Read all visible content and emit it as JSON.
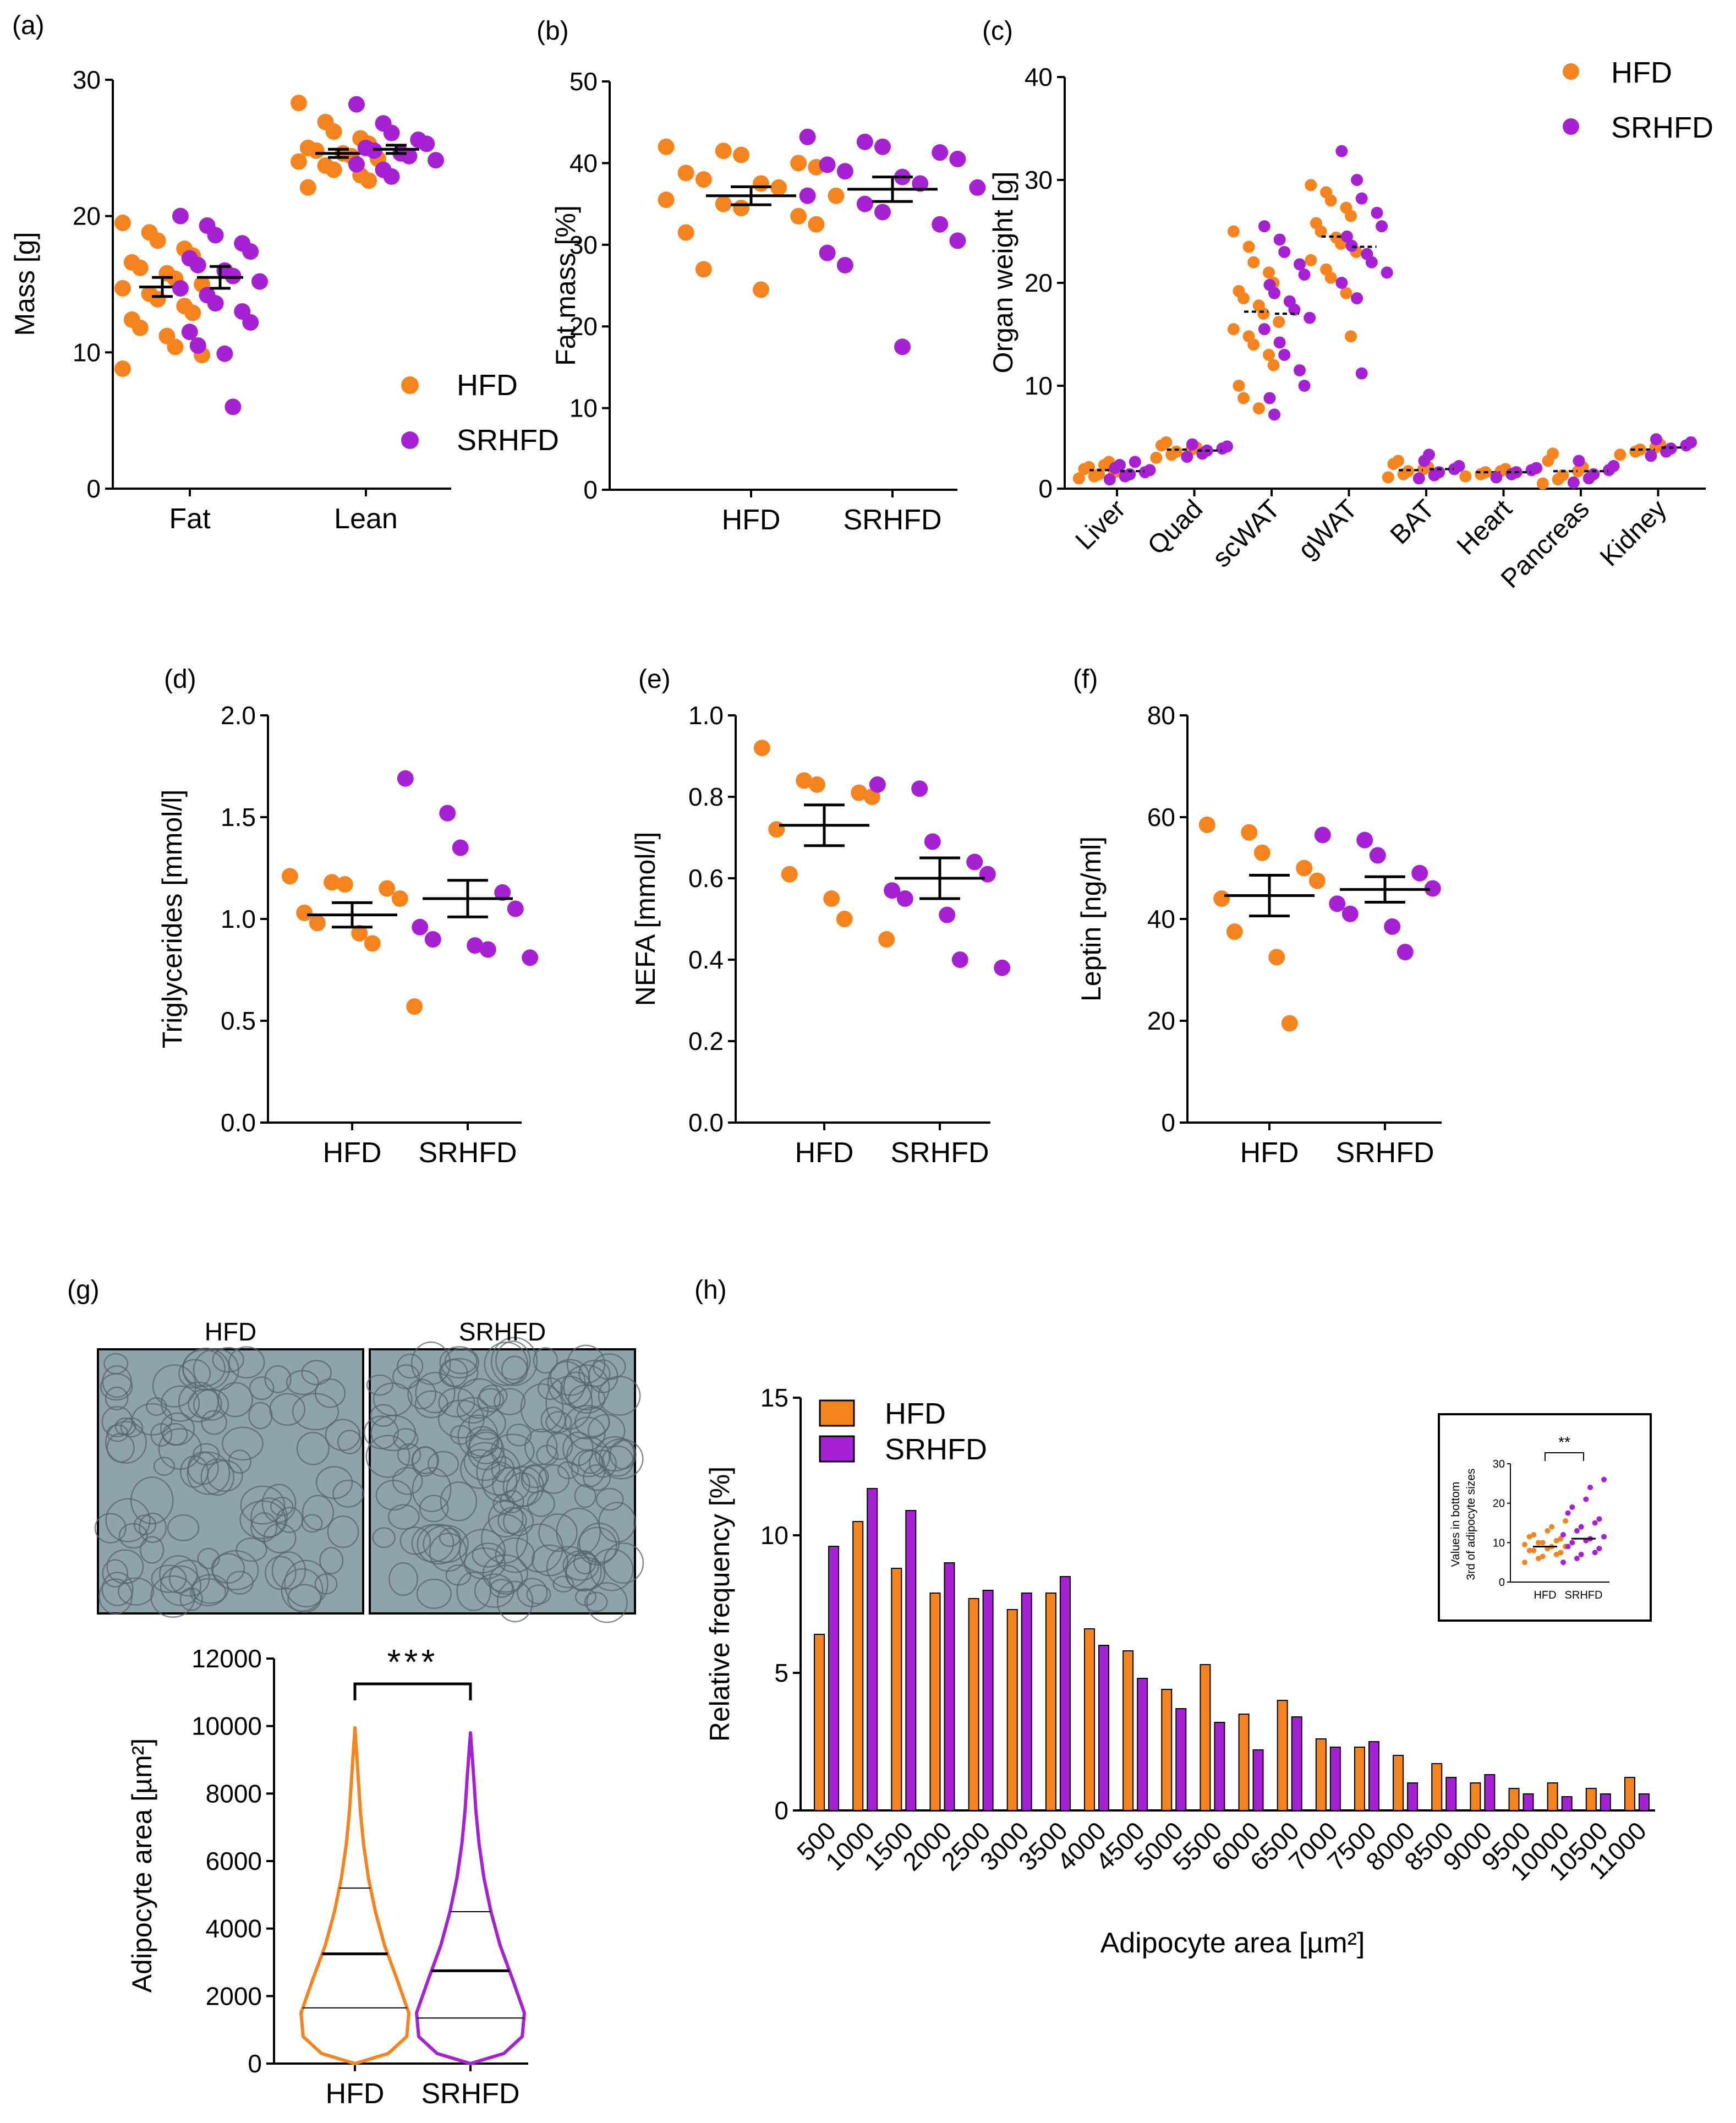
{
  "colors": {
    "hfd": "#F5841F",
    "srhfd": "#A620D4",
    "axis": "#000000"
  },
  "chart_data": [
    {
      "id": "a",
      "panel_label": "(a)",
      "type": "scatter",
      "ylabel": "Mass [g]",
      "ylim": [
        0,
        30
      ],
      "yticks": [
        "0",
        "10",
        "20",
        "30"
      ],
      "categories": [
        "Fat",
        "Lean"
      ],
      "legend": [
        "HFD",
        "SRHFD"
      ],
      "series": [
        {
          "name": "HFD",
          "groups": [
            {
              "category": "Fat",
              "mean": 14.8,
              "sem": 0.7,
              "points": [
                19.5,
                18.8,
                18.2,
                17.6,
                17.1,
                16.6,
                16.2,
                15.8,
                15.4,
                15.0,
                14.7,
                14.3,
                13.9,
                13.4,
                12.9,
                12.4,
                11.8,
                11.2,
                10.4,
                9.8,
                8.8
              ]
            },
            {
              "category": "Lean",
              "mean": 24.6,
              "sem": 0.3,
              "points": [
                28.3,
                26.9,
                26.2,
                25.7,
                25.3,
                25.0,
                24.8,
                24.6,
                24.4,
                24.2,
                24.0,
                23.7,
                23.4,
                23.0,
                22.6,
                22.1
              ]
            }
          ]
        },
        {
          "name": "SRHFD",
          "groups": [
            {
              "category": "Fat",
              "mean": 15.5,
              "sem": 0.8,
              "points": [
                20.0,
                19.3,
                18.6,
                18.0,
                17.4,
                16.9,
                16.4,
                16.0,
                15.6,
                15.2,
                14.7,
                14.2,
                13.6,
                13.0,
                12.2,
                11.5,
                10.5,
                9.9,
                6.0
              ]
            },
            {
              "category": "Lean",
              "mean": 24.9,
              "sem": 0.3,
              "points": [
                28.2,
                26.8,
                26.1,
                25.6,
                25.3,
                25.0,
                24.8,
                24.6,
                24.4,
                24.1,
                23.8,
                23.4,
                22.9
              ]
            }
          ]
        }
      ]
    },
    {
      "id": "b",
      "panel_label": "(b)",
      "type": "scatter",
      "ylabel": "Fat mass [%]",
      "ylim": [
        0,
        50
      ],
      "yticks": [
        "0",
        "10",
        "20",
        "30",
        "40",
        "50"
      ],
      "categories": [
        "HFD",
        "SRHFD"
      ],
      "series": [
        {
          "name": "HFD",
          "groups": [
            {
              "category": "HFD",
              "mean": 36.0,
              "sem": 1.1,
              "points": [
                42.0,
                41.5,
                41.0,
                40.0,
                39.5,
                38.8,
                38.0,
                37.5,
                37.0,
                36.0,
                35.5,
                35.0,
                34.5,
                33.5,
                32.5,
                31.5,
                27.0,
                24.5
              ]
            }
          ]
        },
        {
          "name": "SRHFD",
          "groups": [
            {
              "category": "SRHFD",
              "mean": 36.8,
              "sem": 1.5,
              "points": [
                43.2,
                42.6,
                42.0,
                41.3,
                40.5,
                39.8,
                39.0,
                38.3,
                37.5,
                37.0,
                36.0,
                35.0,
                34.0,
                32.5,
                30.5,
                29.0,
                27.5,
                17.5
              ]
            }
          ]
        }
      ]
    },
    {
      "id": "c",
      "panel_label": "(c)",
      "type": "scatter",
      "ylabel": "Organ weight [g]",
      "ylim": [
        0,
        40
      ],
      "yticks": [
        "0",
        "10",
        "20",
        "30",
        "40"
      ],
      "categories": [
        "Liver",
        "Quad",
        "scWAT",
        "gWAT",
        "BAT",
        "Heart",
        "Pancreas",
        "Kidney"
      ],
      "legend": [
        "HFD",
        "SRHFD"
      ],
      "series": [
        {
          "name": "HFD",
          "groups": [
            {
              "category": "Liver",
              "mean": 1.8,
              "points": [
                1.0,
                1.2,
                1.4,
                1.6,
                1.7,
                1.9,
                2.1,
                2.3,
                2.6
              ]
            },
            {
              "category": "Quad",
              "mean": 3.8,
              "points": [
                3.0,
                3.3,
                3.6,
                3.8,
                4.0,
                4.2,
                4.5
              ]
            },
            {
              "category": "scWAT",
              "mean": 17.2,
              "points": [
                25.0,
                23.5,
                22.0,
                21.0,
                20.0,
                19.2,
                18.5,
                17.8,
                17.0,
                16.2,
                15.5,
                14.8,
                14.0,
                13.0,
                12.0,
                10.0,
                8.8,
                7.8
              ]
            },
            {
              "category": "gWAT",
              "mean": 24.5,
              "points": [
                29.5,
                28.8,
                28.0,
                27.3,
                26.5,
                25.8,
                25.0,
                24.4,
                23.8,
                23.0,
                22.2,
                21.3,
                20.5,
                19.0,
                14.8
              ]
            },
            {
              "category": "BAT",
              "mean": 1.8,
              "points": [
                1.1,
                1.4,
                1.7,
                1.9,
                2.1,
                2.4,
                2.7
              ]
            },
            {
              "category": "Heart",
              "mean": 1.6,
              "points": [
                1.2,
                1.4,
                1.6,
                1.7,
                1.9
              ]
            },
            {
              "category": "Pancreas",
              "mean": 1.7,
              "points": [
                0.5,
                0.9,
                1.3,
                1.7,
                2.1,
                2.7,
                3.4
              ]
            },
            {
              "category": "Kidney",
              "mean": 3.8,
              "points": [
                3.3,
                3.6,
                3.8,
                4.0,
                4.3
              ]
            }
          ]
        },
        {
          "name": "SRHFD",
          "groups": [
            {
              "category": "Liver",
              "mean": 1.7,
              "points": [
                0.9,
                1.2,
                1.4,
                1.6,
                1.8,
                2.0,
                2.3,
                2.6
              ]
            },
            {
              "category": "Quad",
              "mean": 3.7,
              "points": [
                3.1,
                3.4,
                3.7,
                3.9,
                4.1,
                4.3
              ]
            },
            {
              "category": "scWAT",
              "mean": 17.0,
              "points": [
                25.5,
                24.2,
                23.0,
                21.8,
                20.8,
                19.8,
                19.0,
                18.2,
                17.4,
                16.6,
                15.5,
                14.2,
                13.0,
                11.5,
                10.0,
                8.8,
                7.2
              ]
            },
            {
              "category": "gWAT",
              "mean": 23.5,
              "points": [
                32.8,
                30.0,
                28.2,
                26.8,
                25.5,
                24.5,
                23.6,
                22.8,
                22.0,
                21.0,
                20.0,
                18.5,
                11.2
              ]
            },
            {
              "category": "BAT",
              "mean": 1.9,
              "points": [
                1.0,
                1.3,
                1.6,
                1.9,
                2.2,
                2.7,
                3.3
              ]
            },
            {
              "category": "Heart",
              "mean": 1.6,
              "points": [
                1.1,
                1.4,
                1.6,
                1.8,
                2.0
              ]
            },
            {
              "category": "Pancreas",
              "mean": 1.7,
              "points": [
                0.6,
                1.0,
                1.4,
                1.8,
                2.2,
                2.7
              ]
            },
            {
              "category": "Kidney",
              "mean": 4.0,
              "points": [
                3.2,
                3.6,
                3.9,
                4.2,
                4.5,
                4.8
              ]
            }
          ]
        }
      ]
    },
    {
      "id": "d",
      "panel_label": "(d)",
      "type": "scatter",
      "ylabel": "Triglycerides [mmol/l]",
      "ylim": [
        0,
        2
      ],
      "yticks": [
        "0.0",
        "0.5",
        "1.0",
        "1.5",
        "2.0"
      ],
      "categories": [
        "HFD",
        "SRHFD"
      ],
      "series": [
        {
          "name": "HFD",
          "groups": [
            {
              "category": "HFD",
              "mean": 1.02,
              "sem": 0.06,
              "points": [
                1.21,
                1.18,
                1.17,
                1.15,
                1.1,
                1.03,
                0.98,
                0.93,
                0.88,
                0.57
              ]
            }
          ]
        },
        {
          "name": "SRHFD",
          "groups": [
            {
              "category": "SRHFD",
              "mean": 1.1,
              "sem": 0.09,
              "points": [
                1.69,
                1.52,
                1.35,
                1.13,
                1.05,
                0.96,
                0.9,
                0.87,
                0.85,
                0.81
              ]
            }
          ]
        }
      ]
    },
    {
      "id": "e",
      "panel_label": "(e)",
      "type": "scatter",
      "ylabel": "NEFA [mmol/l]",
      "ylim": [
        0,
        1
      ],
      "yticks": [
        "0.0",
        "0.2",
        "0.4",
        "0.6",
        "0.8",
        "1.0"
      ],
      "categories": [
        "HFD",
        "SRHFD"
      ],
      "series": [
        {
          "name": "HFD",
          "groups": [
            {
              "category": "HFD",
              "mean": 0.73,
              "sem": 0.05,
              "points": [
                0.92,
                0.84,
                0.83,
                0.81,
                0.8,
                0.72,
                0.61,
                0.55,
                0.5,
                0.45
              ]
            }
          ]
        },
        {
          "name": "SRHFD",
          "groups": [
            {
              "category": "SRHFD",
              "mean": 0.6,
              "sem": 0.05,
              "points": [
                0.83,
                0.82,
                0.69,
                0.64,
                0.61,
                0.57,
                0.55,
                0.51,
                0.4,
                0.38
              ]
            }
          ]
        }
      ]
    },
    {
      "id": "f",
      "panel_label": "(f)",
      "type": "scatter",
      "ylabel": "Leptin [ng/ml]",
      "ylim": [
        0,
        80
      ],
      "yticks": [
        "0",
        "20",
        "40",
        "60",
        "80"
      ],
      "categories": [
        "HFD",
        "SRHFD"
      ],
      "series": [
        {
          "name": "HFD",
          "groups": [
            {
              "category": "HFD",
              "mean": 44.6,
              "sem": 4.0,
              "points": [
                58.5,
                57.0,
                53.0,
                50.0,
                47.5,
                44.0,
                37.5,
                32.5,
                19.5
              ]
            }
          ]
        },
        {
          "name": "SRHFD",
          "groups": [
            {
              "category": "SRHFD",
              "mean": 45.8,
              "sem": 2.5,
              "points": [
                56.5,
                55.5,
                52.5,
                49.0,
                46.0,
                43.0,
                41.0,
                38.5,
                33.5
              ]
            }
          ]
        }
      ]
    },
    {
      "id": "g",
      "panel_label": "(g)",
      "type": "violin",
      "micrograph_labels": [
        "HFD",
        "SRHFD"
      ],
      "ylabel": "Adipocyte area [µm²]",
      "ylim": [
        0,
        12000
      ],
      "yticks": [
        "0",
        "2000",
        "4000",
        "6000",
        "8000",
        "10000",
        "12000"
      ],
      "categories": [
        "HFD",
        "SRHFD"
      ],
      "significance": "***",
      "series": [
        {
          "name": "HFD",
          "max": 9950,
          "q1": 1650,
          "median": 3250,
          "q3": 5200
        },
        {
          "name": "SRHFD",
          "max": 9800,
          "q1": 1350,
          "median": 2750,
          "q3": 4500
        }
      ]
    },
    {
      "id": "h",
      "panel_label": "(h)",
      "type": "bar",
      "ylabel": "Relative frequency [%]",
      "xlabel": "Adipocyte area [µm²]",
      "ylim": [
        0,
        15
      ],
      "yticks": [
        "0",
        "5",
        "10",
        "15"
      ],
      "categories": [
        "500",
        "1000",
        "1500",
        "2000",
        "2500",
        "3000",
        "3500",
        "4000",
        "4500",
        "5000",
        "5500",
        "6000",
        "6500",
        "7000",
        "7500",
        "8000",
        "8500",
        "9000",
        "9500",
        "10000",
        "10500",
        "11000"
      ],
      "legend": [
        "HFD",
        "SRHFD"
      ],
      "series": [
        {
          "name": "HFD",
          "values": [
            6.4,
            10.5,
            8.8,
            7.9,
            7.7,
            7.3,
            7.9,
            6.6,
            5.8,
            4.4,
            5.3,
            3.5,
            4.0,
            2.6,
            2.3,
            2.0,
            1.7,
            1.0,
            0.8,
            1.0,
            0.8,
            1.2
          ]
        },
        {
          "name": "SRHFD",
          "values": [
            9.6,
            11.7,
            10.9,
            9.0,
            8.0,
            7.9,
            8.5,
            6.0,
            4.8,
            3.7,
            3.2,
            2.2,
            3.4,
            2.3,
            2.5,
            1.0,
            1.2,
            1.3,
            0.6,
            0.5,
            0.6,
            0.6
          ]
        }
      ],
      "inset": {
        "type": "scatter",
        "ylabel_lines": [
          "Values in bottom",
          "3rd of adipocyte sizes"
        ],
        "ylim": [
          0,
          30
        ],
        "yticks": [
          "0",
          "10",
          "20",
          "30"
        ],
        "categories": [
          "HFD",
          "SRHFD"
        ],
        "significance": "**",
        "series": [
          {
            "name": "HFD",
            "mean": 9.0,
            "sem": 0.4,
            "points": [
              5,
              6,
              6.5,
              7,
              7.5,
              8,
              8,
              8.5,
              9,
              9,
              9.5,
              10,
              10,
              10.5,
              11,
              11.5,
              12,
              13,
              14,
              15.5
            ]
          },
          {
            "name": "SRHFD",
            "mean": 11.0,
            "sem": 0.7,
            "points": [
              5,
              6,
              7,
              7.5,
              8.5,
              9,
              10,
              10.5,
              11,
              11.5,
              12,
              13,
              14,
              15,
              16,
              17.5,
              19,
              21,
              24,
              26
            ]
          }
        ]
      }
    }
  ]
}
